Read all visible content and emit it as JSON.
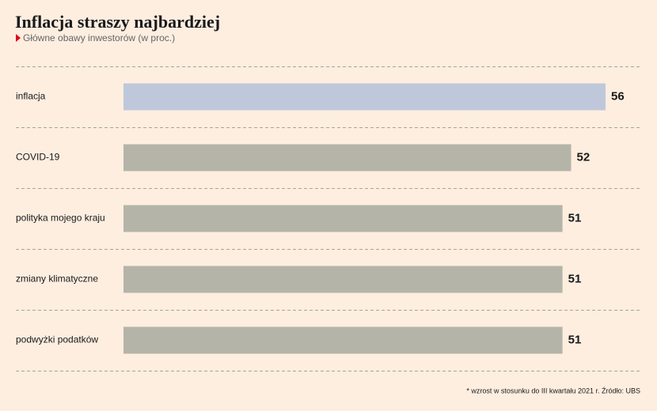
{
  "chart_data": {
    "type": "barh",
    "title": "Inflacja straszy najbardziej",
    "subtitle": "Główne obawy inwestorów (w proc.)",
    "categories": [
      "inflacja",
      "COVID-19",
      "polityka mojego kraju",
      "zmiany klimatyczne",
      "podwyżki podatków"
    ],
    "values": [
      56,
      52,
      51,
      51,
      51
    ],
    "colors": [
      "#bfc8da",
      "#b5b4a8",
      "#b5b4a8",
      "#b5b4a8",
      "#b5b4a8"
    ],
    "footnote": "* wzrost w stosunku do III kwartału 2021 r. Źródło: UBS"
  }
}
